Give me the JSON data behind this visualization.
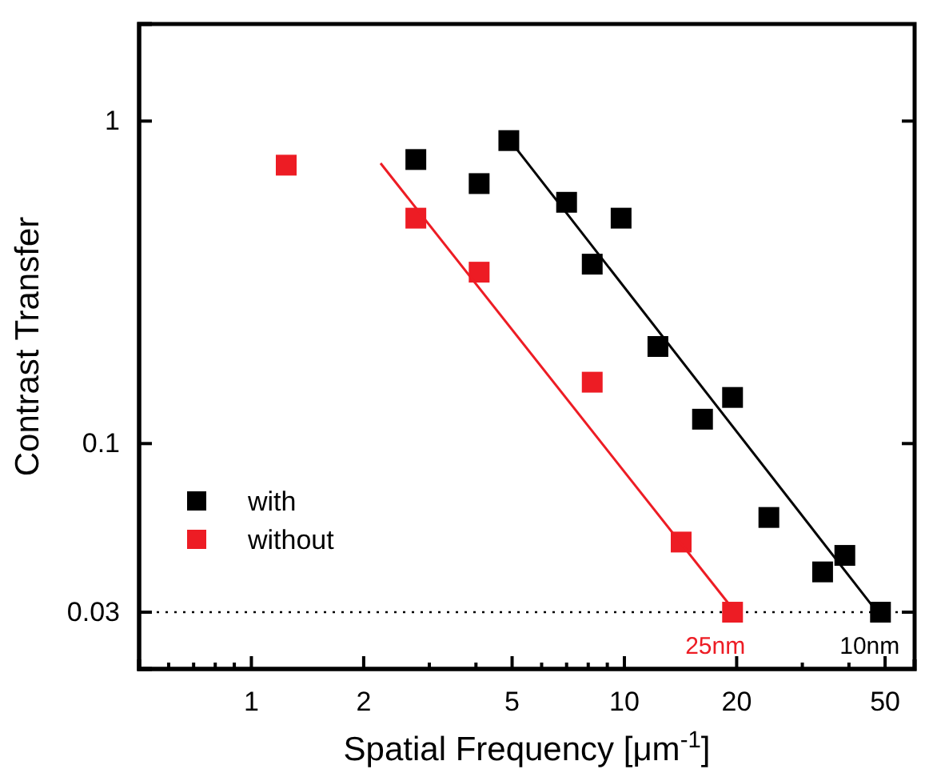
{
  "chart_data": {
    "type": "scatter",
    "xlabel": "Spatial Frequency [μm$^{-1}$]",
    "ylabel": "Contrast Transfer",
    "log": "xy",
    "xlim": [
      0.5,
      60
    ],
    "ylim": [
      0.02,
      2
    ],
    "xticks": [
      {
        "value": 0.6,
        "label": null
      },
      {
        "value": 0.7,
        "label": null
      },
      {
        "value": 0.8,
        "label": null
      },
      {
        "value": 0.9,
        "label": null
      },
      1,
      2,
      {
        "value": 3,
        "label": null
      },
      {
        "value": 4,
        "label": null
      },
      5,
      {
        "value": 6,
        "label": null
      },
      {
        "value": 7,
        "label": null
      },
      {
        "value": 8,
        "label": null
      },
      {
        "value": 9,
        "label": null
      },
      10,
      20,
      {
        "value": 30,
        "label": null
      },
      {
        "value": 40,
        "label": null
      },
      50
    ],
    "yticks": [
      0.03,
      0.1,
      1
    ],
    "marker": "square",
    "legend": "bottom left",
    "grid": false,
    "series": [
      {
        "name": "with",
        "color": "#000000",
        "x": [
          2.76,
          4.08,
          4.9,
          7.0,
          8.2,
          9.8,
          12.3,
          16.2,
          19.5,
          24.4,
          34,
          39,
          48.6
        ],
        "values": [
          0.76,
          0.64,
          0.87,
          0.56,
          0.36,
          0.5,
          0.2,
          0.119,
          0.139,
          0.059,
          0.04,
          0.045,
          0.03
        ]
      },
      {
        "name": "without",
        "color": "#ed1c24",
        "x": [
          1.24,
          2.76,
          4.08,
          8.2,
          14.2,
          19.5
        ],
        "values": [
          0.73,
          0.5,
          0.34,
          0.155,
          0.0495,
          0.03
        ]
      },
      {
        "type": "line",
        "marker": "none",
        "color": "#000000",
        "x": [
          5.14,
          46.3
        ],
        "values": [
          0.82,
          0.0313
        ]
      },
      {
        "type": "line",
        "marker": "none",
        "color": "#ed1c24",
        "x": [
          2.22,
          19.4
        ],
        "values": [
          0.74,
          0.031
        ]
      }
    ],
    "ref_lines": [
      {
        "axis": "y",
        "value": 0.03,
        "line_style": "dotted",
        "color": "#000000"
      }
    ],
    "annotations": [
      {
        "text": "25nm",
        "x": 19.5,
        "y": 0.03
      },
      {
        "text": "10nm",
        "x": 48.6,
        "y": 0.03
      }
    ]
  }
}
